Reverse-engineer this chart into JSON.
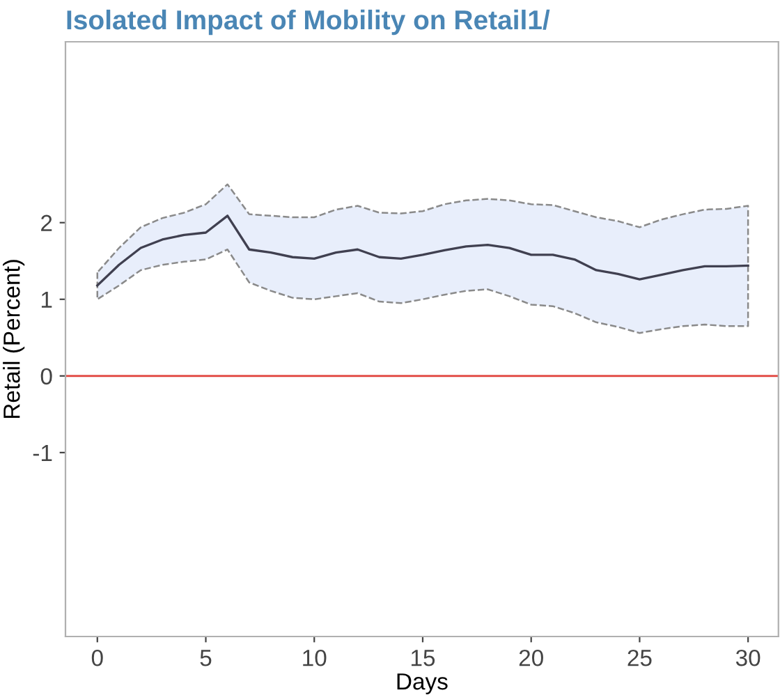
{
  "chart_data": {
    "type": "line",
    "title": "Isolated Impact of Mobility on Retail1/",
    "xlabel": "Days",
    "ylabel": "Retail (Percent)",
    "x": [
      0,
      1,
      2,
      3,
      4,
      5,
      6,
      7,
      8,
      9,
      10,
      11,
      12,
      13,
      14,
      15,
      16,
      17,
      18,
      19,
      20,
      21,
      22,
      23,
      24,
      25,
      26,
      27,
      28,
      29,
      30
    ],
    "series": [
      {
        "color": "#404050",
        "values": [
          1.18,
          1.45,
          1.67,
          1.78,
          1.84,
          1.87,
          2.09,
          1.65,
          1.61,
          1.55,
          1.53,
          1.61,
          1.65,
          1.55,
          1.53,
          1.58,
          1.64,
          1.69,
          1.71,
          1.67,
          1.58,
          1.58,
          1.52,
          1.38,
          1.33,
          1.26,
          1.32,
          1.38,
          1.43,
          1.43,
          1.44
        ],
        "upper": [
          1.35,
          1.67,
          1.94,
          2.06,
          2.13,
          2.24,
          2.5,
          2.11,
          2.09,
          2.07,
          2.07,
          2.17,
          2.22,
          2.13,
          2.12,
          2.15,
          2.24,
          2.29,
          2.31,
          2.29,
          2.24,
          2.23,
          2.15,
          2.07,
          2.02,
          1.94,
          2.04,
          2.11,
          2.17,
          2.18,
          2.22
        ],
        "lower": [
          1.0,
          1.18,
          1.38,
          1.45,
          1.49,
          1.52,
          1.65,
          1.22,
          1.11,
          1.02,
          1.0,
          1.04,
          1.08,
          0.97,
          0.95,
          1.0,
          1.06,
          1.11,
          1.13,
          1.04,
          0.93,
          0.91,
          0.82,
          0.7,
          0.64,
          0.56,
          0.61,
          0.65,
          0.67,
          0.65,
          0.65
        ]
      }
    ],
    "xlim": [
      -1.47,
      31.4
    ],
    "ylim": [
      -3.4,
      4.36
    ],
    "xticks": [
      0,
      5,
      10,
      15,
      20,
      25,
      30
    ],
    "yticks": [
      -1,
      0,
      1,
      2
    ],
    "ref_lines": [
      {
        "axis": "y",
        "value": 0,
        "color": "#e0413a"
      }
    ],
    "grid": false,
    "line_style": "solid",
    "marker": "none"
  }
}
